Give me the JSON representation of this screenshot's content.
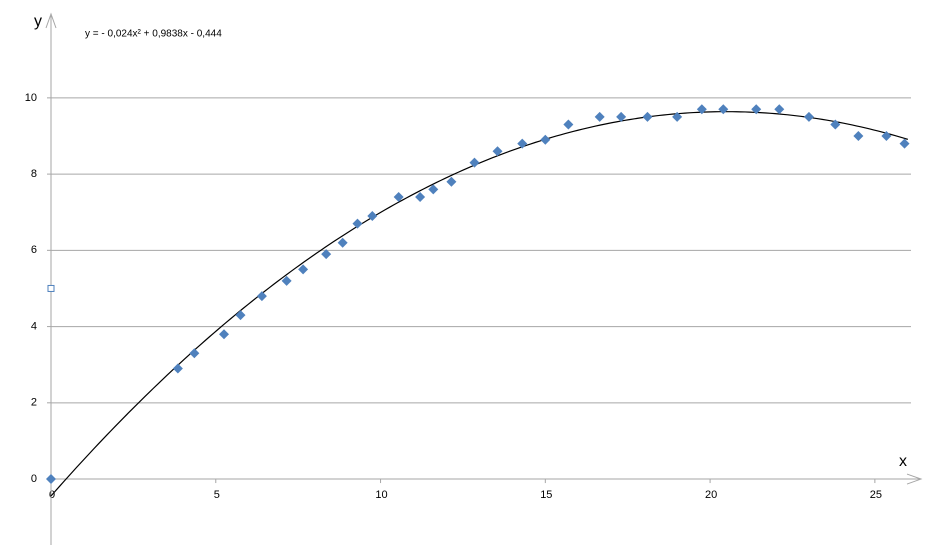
{
  "chart_data": {
    "type": "scatter",
    "x_label": "x",
    "y_label": "y",
    "xlim": [
      0,
      26.4
    ],
    "ylim": [
      -1.73,
      12.2
    ],
    "xticks": [
      0,
      5,
      10,
      15,
      20,
      25
    ],
    "yticks": [
      0,
      2,
      4,
      6,
      8,
      10
    ],
    "grid": true,
    "series": [
      {
        "color": "#4f81bd",
        "marker": "diamond",
        "x": [
          0,
          3.85,
          4.35,
          5.25,
          5.75,
          6.4,
          7.15,
          7.65,
          8.35,
          8.85,
          9.3,
          9.75,
          10.55,
          11.2,
          11.6,
          12.15,
          12.85,
          13.55,
          14.3,
          15,
          15.7,
          16.65,
          17.3,
          18.1,
          19.0,
          19.75,
          20.4,
          21.4,
          22.1,
          23.0,
          23.8,
          24.5,
          25.35,
          25.9
        ],
        "values": [
          0,
          2.9,
          3.3,
          3.8,
          4.3,
          4.8,
          5.2,
          5.5,
          5.9,
          6.2,
          6.7,
          6.9,
          7.4,
          7.4,
          7.6,
          7.8,
          8.3,
          8.6,
          8.8,
          8.9,
          9.3,
          9.5,
          9.5,
          9.5,
          9.5,
          9.7,
          9.7,
          9.7,
          9.7,
          9.5,
          9.3,
          9.0,
          9.0,
          8.8
        ]
      },
      {
        "color": "#4f81bd",
        "marker": "open-square",
        "x": [
          0
        ],
        "values": [
          5
        ]
      }
    ],
    "trendline": {
      "label": "y = - 0,024x² + 0,9838x - 0,444",
      "coefficients": [
        -0.024,
        0.9838,
        -0.444
      ],
      "x_range": [
        0,
        26
      ],
      "color": "#000000"
    }
  }
}
